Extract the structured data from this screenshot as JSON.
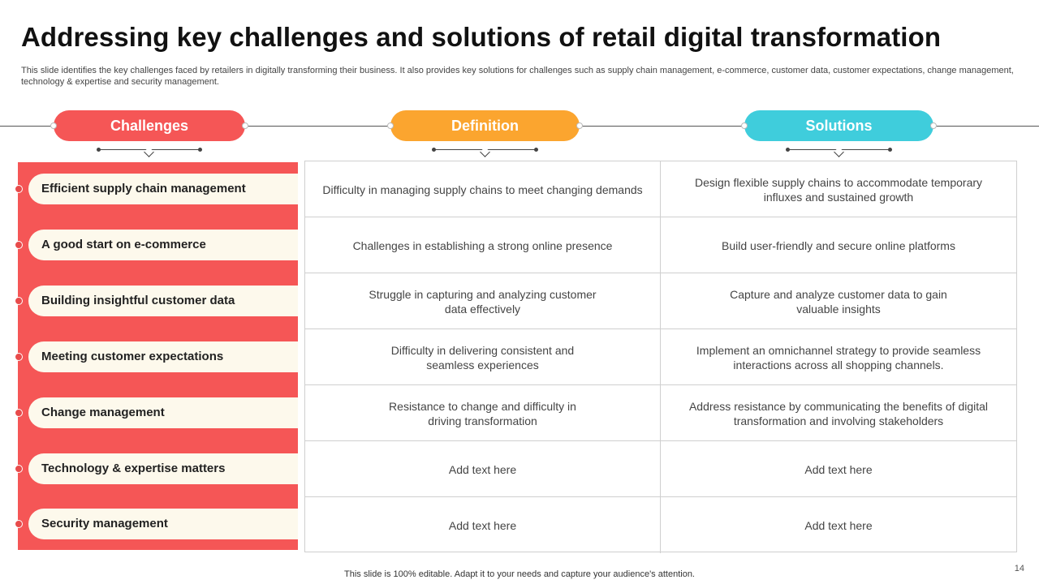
{
  "title": "Addressing key challenges and solutions of retail digital transformation",
  "subtitle": "This slide identifies the key challenges faced by retailers in digitally transforming their business. It also provides key solutions for challenges such as supply chain management, e-commerce, customer data, customer expectations, change management, technology & expertise and security management.",
  "headers": {
    "challenges": "Challenges",
    "definition": "Definition",
    "solutions": "Solutions"
  },
  "colors": {
    "challenges": "#f55656",
    "definition": "#fba52f",
    "solutions": "#3fcddc"
  },
  "rows": [
    {
      "challenge": "Efficient supply chain management",
      "definition": "Difficulty in managing supply chains to meet changing demands",
      "solution": "Design flexible supply chains to accommodate temporary influxes and sustained growth"
    },
    {
      "challenge": "A good start on e-commerce",
      "definition": "Challenges in establishing a strong online presence",
      "solution": "Build user-friendly and secure online platforms"
    },
    {
      "challenge": "Building insightful customer data",
      "definition": "Struggle in capturing and analyzing customer data effectively",
      "solution": "Capture and analyze customer data to gain valuable insights"
    },
    {
      "challenge": "Meeting customer expectations",
      "definition": "Difficulty in delivering consistent and seamless experiences",
      "solution": "Implement an omnichannel strategy to provide seamless interactions across all shopping channels."
    },
    {
      "challenge": "Change management",
      "definition": "Resistance to change and difficulty in driving transformation",
      "solution": "Address resistance by communicating the benefits of digital transformation and involving stakeholders"
    },
    {
      "challenge": "Technology & expertise matters",
      "definition": "Add text here",
      "solution": "Add text here"
    },
    {
      "challenge": "Security management",
      "definition": "Add text here",
      "solution": "Add text here"
    }
  ],
  "footer": "This slide is 100% editable. Adapt it to your needs and capture your audience's attention.",
  "page_number": "14"
}
